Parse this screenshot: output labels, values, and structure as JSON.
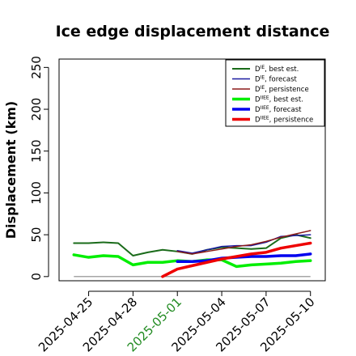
{
  "chart_data": {
    "type": "line",
    "title": "Ice edge displacement distance",
    "xlabel": "",
    "ylabel": "Displacement (km)",
    "ylim": [
      -5,
      260
    ],
    "xlim": [
      "2025-04-23",
      "2025-05-11"
    ],
    "yticks": [
      0,
      50,
      100,
      150,
      200,
      250
    ],
    "xticks": [
      {
        "label": "2025-04-25",
        "date": "2025-04-25",
        "color": "#000000"
      },
      {
        "label": "2025-04-28",
        "date": "2025-04-28",
        "color": "#000000"
      },
      {
        "label": "2025-05-01",
        "date": "2025-05-01",
        "color": "#228B22"
      },
      {
        "label": "2025-05-04",
        "date": "2025-05-04",
        "color": "#000000"
      },
      {
        "label": "2025-05-07",
        "date": "2025-05-07",
        "color": "#000000"
      },
      {
        "label": "2025-05-10",
        "date": "2025-05-10",
        "color": "#000000"
      }
    ],
    "legend_position": "top-right",
    "baseline": {
      "y": 0,
      "x": [
        "2025-04-24",
        "2025-05-10"
      ],
      "color": "#888888"
    },
    "series": [
      {
        "name": "D best est.",
        "sup": "IE",
        "color": "#1a6b1a",
        "width": 2,
        "x": [
          "2025-04-24",
          "2025-04-25",
          "2025-04-26",
          "2025-04-27",
          "2025-04-28",
          "2025-04-29",
          "2025-04-30",
          "2025-05-01",
          "2025-05-02",
          "2025-05-03",
          "2025-05-04",
          "2025-05-05",
          "2025-05-06",
          "2025-05-07",
          "2025-05-08",
          "2025-05-09",
          "2025-05-10"
        ],
        "values": [
          40,
          40,
          41,
          40,
          25,
          29,
          32,
          30,
          27,
          32,
          35,
          34,
          33,
          34,
          46,
          50,
          46
        ]
      },
      {
        "name": "D forecast",
        "sup": "IE",
        "color": "#1a1aa0",
        "width": 1.5,
        "x": [
          "2025-05-01",
          "2025-05-02",
          "2025-05-03",
          "2025-05-04",
          "2025-05-05",
          "2025-05-06",
          "2025-05-07",
          "2025-05-08",
          "2025-05-09",
          "2025-05-10"
        ],
        "values": [
          31,
          28,
          32,
          36,
          37,
          37,
          41,
          48,
          49,
          50
        ]
      },
      {
        "name": "D persistence",
        "sup": "IE",
        "color": "#8b1a1a",
        "width": 1.5,
        "x": [
          "2025-05-01",
          "2025-05-02",
          "2025-05-03",
          "2025-05-04",
          "2025-05-05",
          "2025-05-06",
          "2025-05-07",
          "2025-05-08",
          "2025-05-09",
          "2025-05-10"
        ],
        "values": [
          30,
          27,
          30,
          33,
          36,
          38,
          42,
          47,
          51,
          55
        ]
      },
      {
        "name": "D best est.",
        "sup": "IIEE",
        "color": "#00ee00",
        "width": 3.5,
        "x": [
          "2025-04-24",
          "2025-04-25",
          "2025-04-26",
          "2025-04-27",
          "2025-04-28",
          "2025-04-29",
          "2025-04-30",
          "2025-05-01",
          "2025-05-02",
          "2025-05-03",
          "2025-05-04",
          "2025-05-05",
          "2025-05-06",
          "2025-05-07",
          "2025-05-08",
          "2025-05-09",
          "2025-05-10"
        ],
        "values": [
          26,
          23,
          25,
          24,
          14,
          17,
          17,
          19,
          18,
          20,
          20,
          12,
          14,
          15,
          16,
          18,
          19
        ]
      },
      {
        "name": "D forecast",
        "sup": "IIEE",
        "color": "#0000ee",
        "width": 3.5,
        "x": [
          "2025-05-01",
          "2025-05-02",
          "2025-05-03",
          "2025-05-04",
          "2025-05-05",
          "2025-05-06",
          "2025-05-07",
          "2025-05-08",
          "2025-05-09",
          "2025-05-10"
        ],
        "values": [
          18,
          18,
          19,
          22,
          23,
          24,
          24,
          25,
          25,
          27
        ]
      },
      {
        "name": "D persistence",
        "sup": "IIEE",
        "color": "#ee0000",
        "width": 3.5,
        "x": [
          "2025-04-30",
          "2025-05-01",
          "2025-05-02",
          "2025-05-03",
          "2025-05-04",
          "2025-05-05",
          "2025-05-06",
          "2025-05-07",
          "2025-05-08",
          "2025-05-09",
          "2025-05-10"
        ],
        "values": [
          0,
          9,
          13,
          17,
          21,
          24,
          27,
          29,
          34,
          37,
          40
        ]
      }
    ]
  }
}
